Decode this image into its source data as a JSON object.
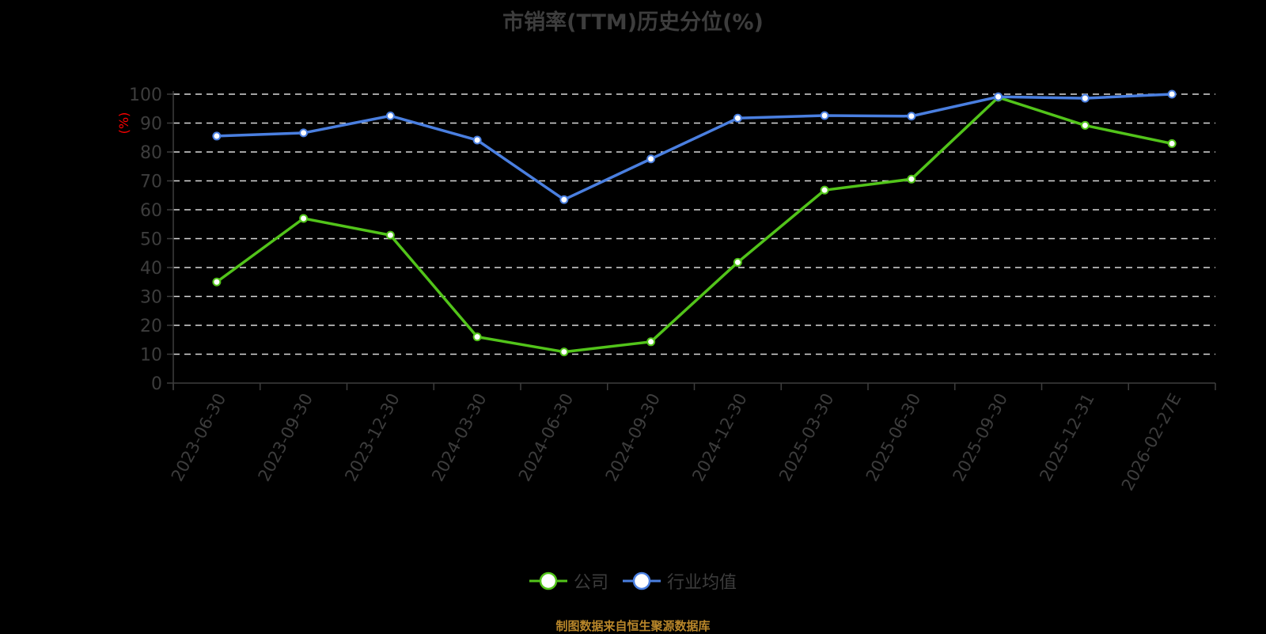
{
  "title": "市销率(TTM)历史分位(%)",
  "y_axis_unit": "(%)",
  "legend": [
    {
      "label": "公司",
      "color": "#52c41a"
    },
    {
      "label": "行业均值",
      "color": "#4a7fe0"
    }
  ],
  "footer": "制图数据来自恒生聚源数据库",
  "colors": {
    "background": "#000000",
    "company_line": "#52c41a",
    "industry_line": "#4a7fe0",
    "axis": "#3d3d3d",
    "grid": "#d9d9d9",
    "unit_label": "#ff0000",
    "footer": "#b8862a"
  },
  "chart_data": {
    "type": "line",
    "title": "市销率(TTM)历史分位(%)",
    "xlabel": "",
    "ylabel": "(%)",
    "ylim": [
      0,
      100
    ],
    "yticks": [
      0,
      10,
      20,
      30,
      40,
      50,
      60,
      70,
      80,
      90,
      100
    ],
    "grid": true,
    "legend_position": "bottom",
    "categories": [
      "2023-06-30",
      "2023-09-30",
      "2023-12-30",
      "2024-03-30",
      "2024-06-30",
      "2024-09-30",
      "2024-12-30",
      "2025-03-30",
      "2025-06-30",
      "2025-09-30",
      "2025-12-31",
      "2026-02-27E"
    ],
    "series": [
      {
        "name": "公司",
        "values": [
          35.0,
          57.0,
          51.2,
          16.0,
          10.8,
          14.3,
          41.8,
          66.8,
          70.6,
          98.9,
          89.2,
          82.9
        ]
      },
      {
        "name": "行业均值",
        "values": [
          85.5,
          86.6,
          92.5,
          84.1,
          63.5,
          77.6,
          91.7,
          92.6,
          92.4,
          99.1,
          98.6,
          100.0
        ]
      }
    ]
  }
}
